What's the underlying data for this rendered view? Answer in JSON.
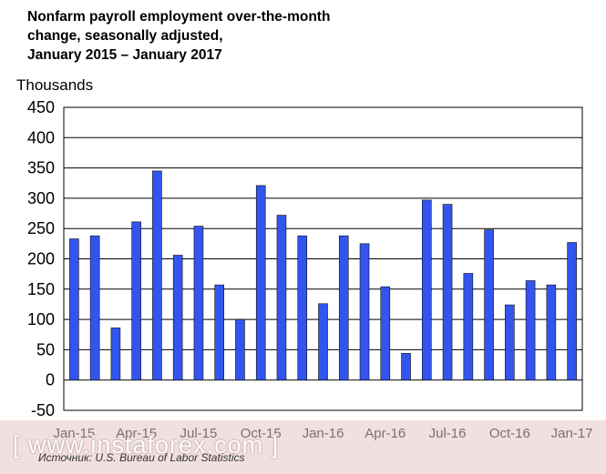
{
  "chart_data": {
    "type": "bar",
    "title_lines": [
      "Nonfarm payroll employment over-the-month",
      "change, seasonally adjusted,",
      "January 2015 – January 2017"
    ],
    "ylabel": "Thousands",
    "xlabel": "",
    "ylim": [
      -50,
      450
    ],
    "yticks": [
      450,
      400,
      350,
      300,
      250,
      200,
      150,
      100,
      50,
      0,
      -50
    ],
    "grid": true,
    "bar_color": "#3355ee",
    "categories": [
      "Jan-15",
      "Feb-15",
      "Mar-15",
      "Apr-15",
      "May-15",
      "Jun-15",
      "Jul-15",
      "Aug-15",
      "Sep-15",
      "Oct-15",
      "Nov-15",
      "Dec-15",
      "Jan-16",
      "Feb-16",
      "Mar-16",
      "Apr-16",
      "May-16",
      "Jun-16",
      "Jul-16",
      "Aug-16",
      "Sep-16",
      "Oct-16",
      "Nov-16",
      "Dec-16",
      "Jan-17"
    ],
    "values": [
      233,
      238,
      86,
      261,
      345,
      206,
      254,
      157,
      100,
      321,
      272,
      238,
      126,
      238,
      225,
      154,
      44,
      297,
      290,
      176,
      248,
      124,
      164,
      157,
      227
    ],
    "xtick_labels": [
      "Jan-15",
      "Apr-15",
      "Jul-15",
      "Oct-15",
      "Jan-16",
      "Apr-16",
      "Jul-16",
      "Oct-16",
      "Jan-17"
    ]
  },
  "footer": {
    "source": "Источник: U.S. Bureau of Labor Statistics",
    "watermark": "[ www.instaforex.com ]"
  }
}
